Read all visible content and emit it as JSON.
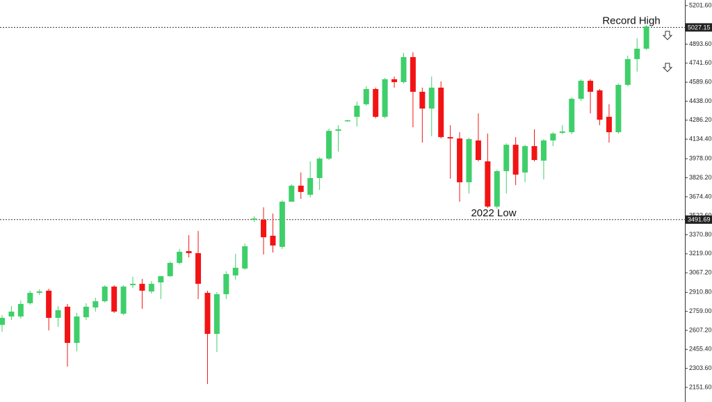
{
  "chart_data": {
    "type": "candlestick",
    "up_color": "#3fcf6a",
    "down_color": "#f21414",
    "ylim": [
      2035,
      5246
    ],
    "yticks": [
      {
        "value": 5201.6,
        "label": "5201.60"
      },
      {
        "value": 4893.6,
        "label": "4893.60"
      },
      {
        "value": 4741.6,
        "label": "4741.60"
      },
      {
        "value": 4589.6,
        "label": "4589.60"
      },
      {
        "value": 4438,
        "label": "4438.00"
      },
      {
        "value": 4286.2,
        "label": "4286.20"
      },
      {
        "value": 4134.4,
        "label": "4134.40"
      },
      {
        "value": 3978,
        "label": "3978.00"
      },
      {
        "value": 3826.2,
        "label": "3826.20"
      },
      {
        "value": 3674.4,
        "label": "3674.40"
      },
      {
        "value": 3522.6,
        "label": "3522.60"
      },
      {
        "value": 3370.8,
        "label": "3370.80"
      },
      {
        "value": 3219,
        "label": "3219.00"
      },
      {
        "value": 3067.2,
        "label": "3067.20"
      },
      {
        "value": 2910.8,
        "label": "2910.80"
      },
      {
        "value": 2759,
        "label": "2759.00"
      },
      {
        "value": 2607.2,
        "label": "2607.20"
      },
      {
        "value": 2455.4,
        "label": "2455.40"
      },
      {
        "value": 2303.6,
        "label": "2303.60"
      },
      {
        "value": 2151.6,
        "label": "2151.60"
      }
    ],
    "levels": [
      {
        "value": 5027.15,
        "annotation": "Record High"
      },
      {
        "value": 3491.69,
        "annotation": "2022 Low"
      }
    ],
    "open": [
      2651,
      2718,
      2718,
      2824,
      2907,
      2924,
      2707,
      2796,
      2507,
      2712,
      2790,
      2840,
      2957,
      2740,
      2968,
      2979,
      2918,
      2990,
      3040,
      3146,
      3240,
      3224,
      2907,
      2579,
      2896,
      3046,
      3101,
      3490,
      3490,
      3363,
      3274,
      3635,
      3763,
      3690,
      3824,
      3979,
      4201,
      4279,
      4313,
      4413,
      4535,
      4313,
      4613,
      4590,
      4790,
      4513,
      4379,
      4546,
      4151,
      4140,
      3790,
      4124,
      3957,
      3596,
      3879,
      4090,
      3868,
      4079,
      3963,
      4124,
      4185,
      4190,
      4457,
      4601,
      4524,
      4313,
      4190,
      4568,
      4774,
      4857
    ],
    "high": [
      2729,
      2801,
      2846,
      2924,
      2935,
      2940,
      2801,
      2818,
      2746,
      2824,
      2868,
      2968,
      2968,
      2968,
      3035,
      3018,
      3001,
      3040,
      3157,
      3257,
      3368,
      3401,
      2924,
      2913,
      3079,
      3218,
      3301,
      3518,
      3590,
      3540,
      3646,
      3774,
      3868,
      3957,
      3990,
      4218,
      4246,
      4290,
      4435,
      4557,
      4546,
      4624,
      4635,
      4824,
      4829,
      4546,
      4635,
      4596,
      4246,
      4190,
      4146,
      4340,
      4179,
      3890,
      4101,
      4151,
      4090,
      4213,
      4135,
      4190,
      4246,
      4468,
      4613,
      4613,
      4535,
      4413,
      4579,
      4802,
      4940,
      5046
    ],
    "low": [
      2596,
      2690,
      2701,
      2813,
      2890,
      2607,
      2635,
      2318,
      2440,
      2690,
      2757,
      2829,
      2746,
      2729,
      2946,
      2779,
      2901,
      2857,
      3035,
      3135,
      3190,
      2857,
      2179,
      2435,
      2857,
      3012,
      3090,
      3474,
      3213,
      3229,
      3257,
      3635,
      3657,
      3668,
      3729,
      3968,
      4035,
      4274,
      4235,
      4402,
      4301,
      4301,
      4546,
      4579,
      4229,
      4107,
      4157,
      4140,
      3818,
      3635,
      3701,
      3957,
      3585,
      3579,
      3701,
      3768,
      3790,
      3957,
      3813,
      4079,
      4174,
      4174,
      4440,
      4340,
      4246,
      4107,
      4179,
      4557,
      4674,
      4846
    ],
    "close": [
      2707,
      2757,
      2818,
      2907,
      2918,
      2707,
      2768,
      2507,
      2718,
      2796,
      2840,
      2957,
      2757,
      2957,
      2979,
      2924,
      2979,
      3040,
      3146,
      3235,
      3224,
      2979,
      2579,
      2896,
      3057,
      3107,
      3279,
      3501,
      3351,
      3285,
      3635,
      3763,
      3713,
      3824,
      3979,
      4201,
      4213,
      4285,
      4402,
      4535,
      4313,
      4613,
      4590,
      4790,
      4513,
      4379,
      4546,
      4151,
      4140,
      3790,
      4135,
      3968,
      3596,
      3879,
      4090,
      3851,
      4079,
      3968,
      4124,
      4179,
      4196,
      4457,
      4601,
      4513,
      4290,
      4190,
      4568,
      4774,
      4857,
      5035
    ]
  }
}
